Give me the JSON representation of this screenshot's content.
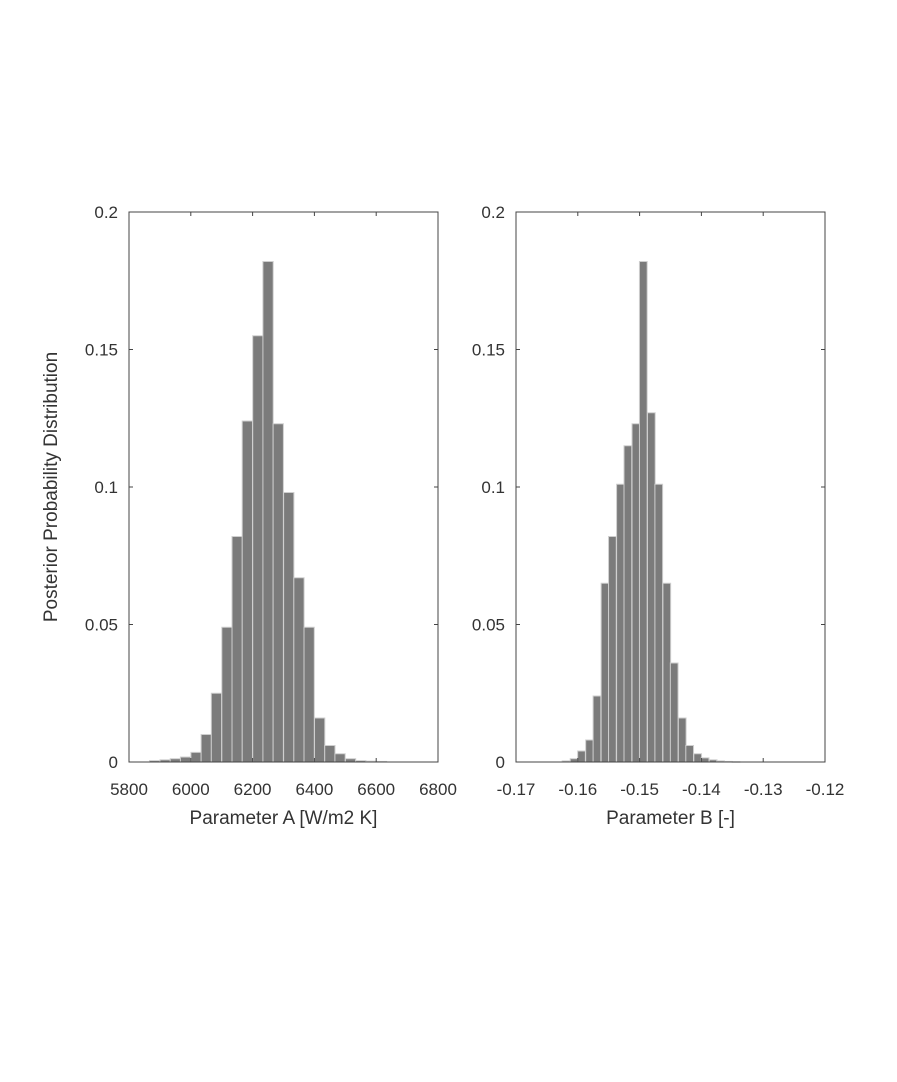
{
  "colors": {
    "bar_fill": "#7b7b7b",
    "bar_edge": "#cfcfcf",
    "axes": "#444444",
    "text": "#333333"
  },
  "chart_data": [
    {
      "type": "bar",
      "ylabel": "Posterior Probability Distribution",
      "xlabel": "Parameter A [W/m2 K]",
      "xlim": [
        5800,
        6800
      ],
      "ylim": [
        0,
        0.2
      ],
      "xticks": [
        "5800",
        "6000",
        "6200",
        "6400",
        "6600",
        "6800"
      ],
      "yticks": [
        "0",
        "0.05",
        "0.1",
        "0.15",
        "0.2"
      ],
      "bin_width": 33.3,
      "x": [
        5883,
        5917,
        5950,
        5983,
        6017,
        6050,
        6083,
        6117,
        6150,
        6183,
        6217,
        6250,
        6283,
        6317,
        6350,
        6383,
        6417,
        6450,
        6483,
        6517,
        6550,
        6583,
        6617
      ],
      "values": [
        0.0005,
        0.0008,
        0.0012,
        0.0018,
        0.0035,
        0.01,
        0.025,
        0.049,
        0.082,
        0.124,
        0.155,
        0.182,
        0.123,
        0.098,
        0.067,
        0.049,
        0.016,
        0.006,
        0.003,
        0.0012,
        0.0005,
        0.0003,
        0.0002
      ],
      "grid": false
    },
    {
      "type": "bar",
      "ylabel": "",
      "xlabel": "Parameter B [-]",
      "xlim": [
        -0.17,
        -0.12
      ],
      "ylim": [
        0,
        0.2
      ],
      "xticks": [
        "-0.17",
        "-0.16",
        "-0.15",
        "-0.14",
        "-0.13",
        "-0.12"
      ],
      "yticks": [
        "0",
        "0.05",
        "0.1",
        "0.15",
        "0.2"
      ],
      "bin_width": 0.00125,
      "x": [
        -0.1619,
        -0.1606,
        -0.1594,
        -0.1581,
        -0.1569,
        -0.1556,
        -0.1544,
        -0.1531,
        -0.1519,
        -0.1506,
        -0.1494,
        -0.1481,
        -0.1469,
        -0.1456,
        -0.1444,
        -0.1431,
        -0.1419,
        -0.1406,
        -0.1394,
        -0.1381,
        -0.1369,
        -0.1356,
        -0.1344
      ],
      "values": [
        0.0004,
        0.0012,
        0.004,
        0.008,
        0.024,
        0.065,
        0.082,
        0.101,
        0.115,
        0.123,
        0.182,
        0.127,
        0.101,
        0.065,
        0.036,
        0.016,
        0.006,
        0.003,
        0.0015,
        0.0008,
        0.0004,
        0.0002,
        0.0001
      ],
      "grid": false
    }
  ]
}
